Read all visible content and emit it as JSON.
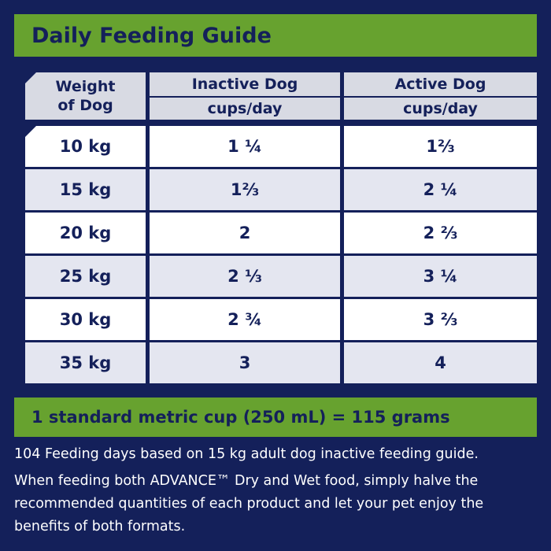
{
  "title": "Daily Feeding Guide",
  "table": {
    "header": {
      "weight": [
        "Weight",
        "of Dog"
      ],
      "inactive": "Inactive Dog",
      "inactive_unit": "cups/day",
      "active": "Active Dog",
      "active_unit": "cups/day"
    },
    "rows": [
      [
        "10 kg",
        "1 ¼",
        "1⅔"
      ],
      [
        "15 kg",
        "1⅔",
        "2 ¼"
      ],
      [
        "20 kg",
        "2",
        "2 ⅔"
      ],
      [
        "25 kg",
        "2 ⅓",
        "3 ¼"
      ],
      [
        "30 kg",
        "2 ¾",
        "3 ⅔"
      ],
      [
        "35 kg",
        "3",
        "4"
      ]
    ]
  },
  "footer": {
    "conversion": "1 standard metric cup (250 mL) = 115 grams",
    "notes": [
      "104 Feeding days based on 15 kg adult dog inactive feeding guide.",
      "When feeding both ADVANCE™ Dry and Wet food, simply halve the recommended quantities of each product and let your pet enjoy the benefits of both formats."
    ]
  }
}
